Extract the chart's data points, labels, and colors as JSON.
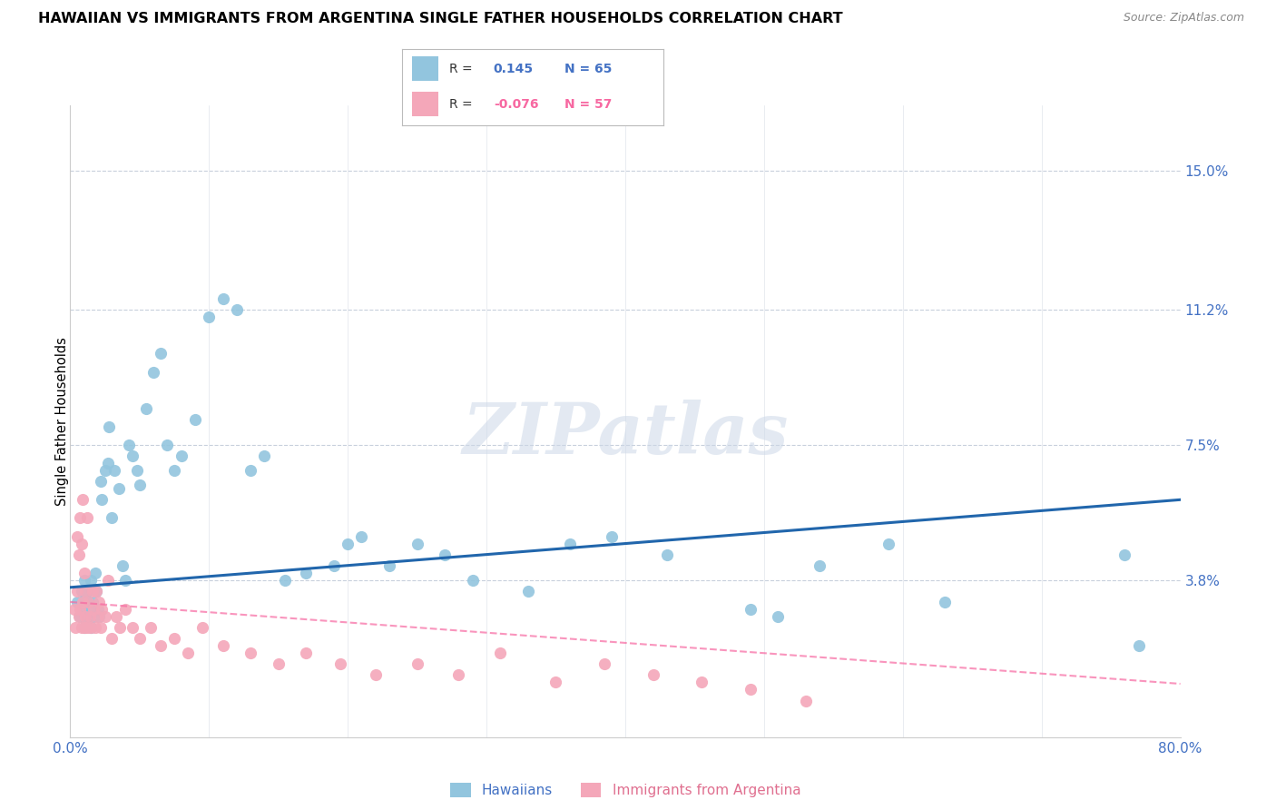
{
  "title": "HAWAIIAN VS IMMIGRANTS FROM ARGENTINA SINGLE FATHER HOUSEHOLDS CORRELATION CHART",
  "source": "Source: ZipAtlas.com",
  "ylabel": "Single Father Households",
  "xlim": [
    0,
    0.8
  ],
  "ylim": [
    -0.005,
    0.168
  ],
  "yticks": [
    0.0,
    0.038,
    0.075,
    0.112,
    0.15
  ],
  "ytick_labels": [
    "",
    "3.8%",
    "7.5%",
    "11.2%",
    "15.0%"
  ],
  "xticks": [
    0.0,
    0.1,
    0.2,
    0.3,
    0.4,
    0.5,
    0.6,
    0.7,
    0.8
  ],
  "xtick_labels": [
    "0.0%",
    "",
    "",
    "",
    "",
    "",
    "",
    "",
    "80.0%"
  ],
  "blue_color": "#92c5de",
  "pink_color": "#f4a7b9",
  "blue_line_color": "#2166ac",
  "pink_line_color": "#f768a1",
  "watermark_text": "ZIPatlas",
  "hawaiians_x": [
    0.005,
    0.007,
    0.008,
    0.009,
    0.01,
    0.01,
    0.011,
    0.012,
    0.012,
    0.013,
    0.014,
    0.015,
    0.015,
    0.016,
    0.017,
    0.018,
    0.019,
    0.02,
    0.021,
    0.022,
    0.023,
    0.025,
    0.027,
    0.028,
    0.03,
    0.032,
    0.035,
    0.038,
    0.04,
    0.042,
    0.045,
    0.048,
    0.05,
    0.055,
    0.06,
    0.065,
    0.07,
    0.075,
    0.08,
    0.09,
    0.1,
    0.11,
    0.12,
    0.13,
    0.14,
    0.155,
    0.17,
    0.19,
    0.2,
    0.21,
    0.23,
    0.25,
    0.27,
    0.29,
    0.33,
    0.36,
    0.39,
    0.43,
    0.49,
    0.51,
    0.54,
    0.59,
    0.63,
    0.76,
    0.77
  ],
  "hawaiians_y": [
    0.032,
    0.028,
    0.035,
    0.03,
    0.025,
    0.038,
    0.033,
    0.028,
    0.035,
    0.032,
    0.03,
    0.025,
    0.038,
    0.032,
    0.028,
    0.04,
    0.035,
    0.03,
    0.028,
    0.065,
    0.06,
    0.068,
    0.07,
    0.08,
    0.055,
    0.068,
    0.063,
    0.042,
    0.038,
    0.075,
    0.072,
    0.068,
    0.064,
    0.085,
    0.095,
    0.1,
    0.075,
    0.068,
    0.072,
    0.082,
    0.11,
    0.115,
    0.112,
    0.068,
    0.072,
    0.038,
    0.04,
    0.042,
    0.048,
    0.05,
    0.042,
    0.048,
    0.045,
    0.038,
    0.035,
    0.048,
    0.05,
    0.045,
    0.03,
    0.028,
    0.042,
    0.048,
    0.032,
    0.045,
    0.02
  ],
  "argentina_x": [
    0.003,
    0.004,
    0.005,
    0.005,
    0.006,
    0.006,
    0.007,
    0.007,
    0.008,
    0.008,
    0.009,
    0.009,
    0.01,
    0.01,
    0.011,
    0.011,
    0.012,
    0.012,
    0.013,
    0.014,
    0.015,
    0.016,
    0.017,
    0.018,
    0.019,
    0.02,
    0.021,
    0.022,
    0.023,
    0.025,
    0.027,
    0.03,
    0.033,
    0.036,
    0.04,
    0.045,
    0.05,
    0.058,
    0.065,
    0.075,
    0.085,
    0.095,
    0.11,
    0.13,
    0.15,
    0.17,
    0.195,
    0.22,
    0.25,
    0.28,
    0.31,
    0.35,
    0.385,
    0.42,
    0.455,
    0.49,
    0.53
  ],
  "argentina_y": [
    0.03,
    0.025,
    0.05,
    0.035,
    0.045,
    0.028,
    0.055,
    0.03,
    0.048,
    0.025,
    0.06,
    0.032,
    0.04,
    0.025,
    0.035,
    0.028,
    0.055,
    0.025,
    0.032,
    0.028,
    0.025,
    0.035,
    0.03,
    0.025,
    0.035,
    0.028,
    0.032,
    0.025,
    0.03,
    0.028,
    0.038,
    0.022,
    0.028,
    0.025,
    0.03,
    0.025,
    0.022,
    0.025,
    0.02,
    0.022,
    0.018,
    0.025,
    0.02,
    0.018,
    0.015,
    0.018,
    0.015,
    0.012,
    0.015,
    0.012,
    0.018,
    0.01,
    0.015,
    0.012,
    0.01,
    0.008,
    0.005
  ]
}
